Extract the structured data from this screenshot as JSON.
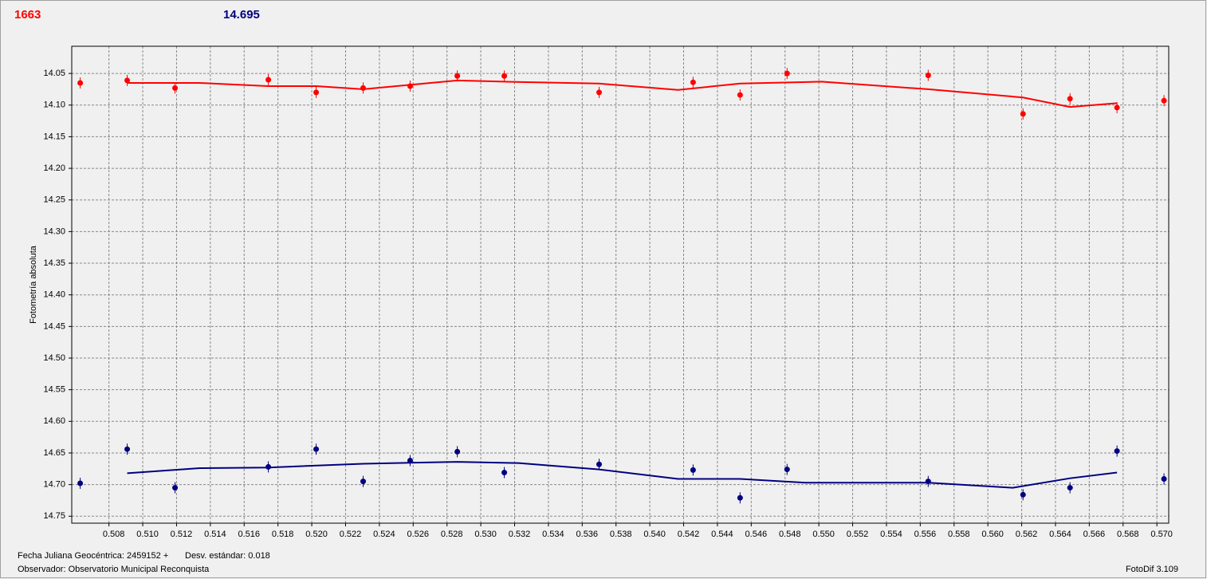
{
  "chart_data": {
    "type": "scatter",
    "header_left": "1663",
    "header_right": "14.695",
    "ylabel": "Fotometría absoluta",
    "footer": [
      "Fecha Juliana Geocéntrica: 2459152 +",
      "Desv. estándar: 0.018",
      "Observador: Observatorio Municipal Reconquista",
      "FotoDif 3.109"
    ],
    "xlim": [
      0.5058,
      0.5707
    ],
    "ylim": [
      14.761,
      14.007
    ],
    "grid": true,
    "xticks": [
      0.508,
      {
        "value": 0.51,
        "label": "0.510"
      },
      0.512,
      0.514,
      0.516,
      0.518,
      {
        "value": 0.52,
        "label": "0.520"
      },
      0.522,
      0.524,
      0.526,
      0.528,
      {
        "value": 0.53,
        "label": "0.530"
      },
      0.532,
      0.534,
      0.536,
      0.538,
      {
        "value": 0.54,
        "label": "0.540"
      },
      0.542,
      0.544,
      0.546,
      0.548,
      {
        "value": 0.55,
        "label": "0.550"
      },
      0.552,
      0.554,
      0.556,
      0.558,
      {
        "value": 0.56,
        "label": "0.560"
      },
      0.562,
      0.564,
      0.566,
      0.568,
      {
        "value": 0.57,
        "label": "0.570"
      }
    ],
    "yticks": [
      14.05,
      {
        "value": 14.1,
        "label": "14.10"
      },
      14.15,
      {
        "value": 14.2,
        "label": "14.20"
      },
      14.25,
      {
        "value": 14.3,
        "label": "14.30"
      },
      14.35,
      {
        "value": 14.4,
        "label": "14.40"
      },
      14.45,
      {
        "value": 14.5,
        "label": "14.50"
      },
      14.55,
      {
        "value": 14.6,
        "label": "14.60"
      },
      14.65,
      {
        "value": 14.7,
        "label": "14.70"
      },
      14.75
    ],
    "series": [
      {
        "style": "points",
        "color": "#ff0000",
        "x": [
          0.5063,
          0.50908,
          0.51191,
          0.51743,
          0.52026,
          0.52304,
          0.52582,
          0.52861,
          0.53139,
          0.537,
          0.54256,
          0.54534,
          0.54812,
          0.55647,
          0.56208,
          0.56486,
          0.56764,
          0.57042
        ],
        "values": [
          14.065,
          14.061,
          14.073,
          14.06,
          14.08,
          14.073,
          14.07,
          14.054,
          14.054,
          14.08,
          14.064,
          14.084,
          14.05,
          14.053,
          14.114,
          14.09,
          14.104,
          14.093
        ]
      },
      {
        "style": "line",
        "color": "#ff0000",
        "x": [
          0.50908,
          0.51337,
          0.51743,
          0.52026,
          0.52304,
          0.52582,
          0.52861,
          0.53139,
          0.537,
          0.54167,
          0.54534,
          0.55015,
          0.55647,
          0.56208,
          0.56486,
          0.56764
        ],
        "values": [
          14.065,
          14.065,
          14.07,
          14.07,
          14.075,
          14.068,
          14.061,
          14.063,
          14.066,
          14.076,
          14.066,
          14.063,
          14.075,
          14.088,
          14.103,
          14.097
        ]
      },
      {
        "style": "points",
        "color": "#000080",
        "x": [
          0.5063,
          0.50908,
          0.51191,
          0.51743,
          0.52026,
          0.52304,
          0.52582,
          0.52861,
          0.53139,
          0.537,
          0.54256,
          0.54534,
          0.54812,
          0.55647,
          0.56208,
          0.56486,
          0.56764,
          0.57042
        ],
        "values": [
          14.698,
          14.644,
          14.705,
          14.672,
          14.644,
          14.695,
          14.662,
          14.648,
          14.681,
          14.668,
          14.677,
          14.721,
          14.676,
          14.695,
          14.716,
          14.705,
          14.647,
          14.691
        ]
      },
      {
        "style": "line",
        "color": "#000080",
        "x": [
          0.50908,
          0.51337,
          0.51743,
          0.52304,
          0.52861,
          0.53223,
          0.537,
          0.54167,
          0.54534,
          0.54921,
          0.55647,
          0.56147,
          0.56486,
          0.56764
        ],
        "values": [
          14.682,
          14.674,
          14.673,
          14.667,
          14.664,
          14.666,
          14.676,
          14.691,
          14.691,
          14.697,
          14.697,
          14.705,
          14.69,
          14.681
        ]
      }
    ]
  }
}
